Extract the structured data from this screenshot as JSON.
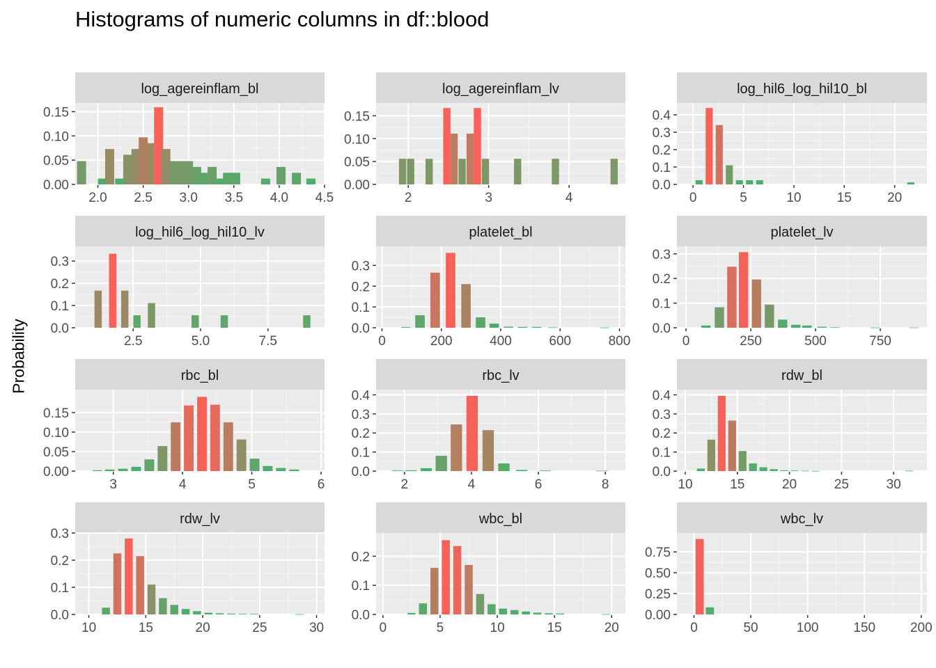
{
  "title": "Histograms of numeric columns in df::blood",
  "ylabel": "Probability",
  "chart_data": {
    "type": "bar",
    "title": "Histograms of numeric columns in df::blood",
    "ylabel": "Probability",
    "color_low": "#41B36E",
    "color_high": "#F8605A",
    "panel_bg": "#EBEBEB",
    "strip_bg": "#D9D9D9",
    "grid": true,
    "facets": [
      {
        "name": "log_agereinflam_bl",
        "xlim": [
          1.75,
          4.5
        ],
        "ylim": [
          0,
          0.165
        ],
        "xticks": [
          {
            "v": 2.0,
            "label": "2.0"
          },
          {
            "v": 2.5,
            "label": "2.5"
          },
          {
            "v": 3.0,
            "label": "3.0"
          },
          {
            "v": 3.5,
            "label": "3.5"
          },
          {
            "v": 4.0,
            "label": "4.0"
          },
          {
            "v": 4.5,
            "label": "4.5"
          }
        ],
        "yticks": [
          {
            "v": 0.0,
            "label": "0.00"
          },
          {
            "v": 0.05,
            "label": "0.05"
          },
          {
            "v": 0.1,
            "label": "0.10"
          },
          {
            "v": 0.15,
            "label": "0.15"
          }
        ],
        "binwidth": 0.1,
        "x": [
          1.82,
          2.05,
          2.13,
          2.24,
          2.33,
          2.42,
          2.5,
          2.58,
          2.67,
          2.75,
          2.84,
          2.92,
          3.0,
          3.09,
          3.17,
          3.26,
          3.35,
          3.43,
          3.52,
          3.85,
          4.02,
          4.19,
          4.35
        ],
        "values": [
          0.048,
          0.012,
          0.073,
          0.012,
          0.061,
          0.073,
          0.097,
          0.085,
          0.159,
          0.073,
          0.048,
          0.048,
          0.048,
          0.036,
          0.024,
          0.036,
          0.012,
          0.024,
          0.024,
          0.012,
          0.036,
          0.024,
          0.012
        ]
      },
      {
        "name": "log_agereinflam_lv",
        "xlim": [
          1.6,
          4.7
        ],
        "ylim": [
          0,
          0.175
        ],
        "xticks": [
          {
            "v": 2,
            "label": "2"
          },
          {
            "v": 3,
            "label": "3"
          },
          {
            "v": 4,
            "label": "4"
          }
        ],
        "yticks": [
          {
            "v": 0.0,
            "label": "0.00"
          },
          {
            "v": 0.05,
            "label": "0.05"
          },
          {
            "v": 0.1,
            "label": "0.10"
          },
          {
            "v": 0.15,
            "label": "0.15"
          }
        ],
        "binwidth": 0.09,
        "x": [
          1.93,
          2.03,
          2.26,
          2.48,
          2.57,
          2.67,
          2.77,
          2.86,
          2.96,
          3.36,
          3.83,
          4.56
        ],
        "values": [
          0.056,
          0.056,
          0.056,
          0.167,
          0.111,
          0.056,
          0.111,
          0.167,
          0.056,
          0.056,
          0.056,
          0.056
        ]
      },
      {
        "name": "log_hil6_log_hil10_bl",
        "xlim": [
          -1.6,
          23.2
        ],
        "ylim": [
          0,
          0.46
        ],
        "xticks": [
          {
            "v": 0,
            "label": "0"
          },
          {
            "v": 5,
            "label": "5"
          },
          {
            "v": 10,
            "label": "10"
          },
          {
            "v": 15,
            "label": "15"
          },
          {
            "v": 20,
            "label": "20"
          }
        ],
        "yticks": [
          {
            "v": 0.0,
            "label": "0.0"
          },
          {
            "v": 0.1,
            "label": "0.1"
          },
          {
            "v": 0.2,
            "label": "0.2"
          },
          {
            "v": 0.3,
            "label": "0.3"
          },
          {
            "v": 0.4,
            "label": "0.4"
          }
        ],
        "binwidth": 0.7,
        "x": [
          0.6,
          1.6,
          2.6,
          3.6,
          4.6,
          5.6,
          6.6,
          21.6
        ],
        "values": [
          0.024,
          0.439,
          0.341,
          0.11,
          0.024,
          0.024,
          0.024,
          0.012
        ]
      },
      {
        "name": "log_hil6_log_hil10_lv",
        "xlim": [
          0.35,
          9.6
        ],
        "ylim": [
          0,
          0.36
        ],
        "xticks": [
          {
            "v": 2.5,
            "label": "2.5"
          },
          {
            "v": 5.0,
            "label": "5.0"
          },
          {
            "v": 7.5,
            "label": "7.5"
          }
        ],
        "yticks": [
          {
            "v": 0.0,
            "label": "0.0"
          },
          {
            "v": 0.1,
            "label": "0.1"
          },
          {
            "v": 0.2,
            "label": "0.2"
          },
          {
            "v": 0.3,
            "label": "0.3"
          }
        ],
        "binwidth": 0.27,
        "x": [
          1.2,
          1.74,
          2.19,
          2.64,
          3.18,
          4.8,
          5.88,
          8.94
        ],
        "values": [
          0.167,
          0.333,
          0.167,
          0.056,
          0.111,
          0.056,
          0.056,
          0.056
        ]
      },
      {
        "name": "platelet_bl",
        "xlim": [
          -20,
          820
        ],
        "ylim": [
          0,
          0.385
        ],
        "xticks": [
          {
            "v": 0,
            "label": "0"
          },
          {
            "v": 200,
            "label": "200"
          },
          {
            "v": 400,
            "label": "400"
          },
          {
            "v": 600,
            "label": "600"
          },
          {
            "v": 800,
            "label": "800"
          }
        ],
        "yticks": [
          {
            "v": 0.0,
            "label": "0.0"
          },
          {
            "v": 0.1,
            "label": "0.1"
          },
          {
            "v": 0.2,
            "label": "0.2"
          },
          {
            "v": 0.3,
            "label": "0.3"
          }
        ],
        "binwidth": 32,
        "x": [
          80,
          128,
          179,
          231,
          283,
          332,
          378,
          426,
          474,
          521,
          575,
          750
        ],
        "values": [
          0.003,
          0.06,
          0.265,
          0.36,
          0.21,
          0.05,
          0.02,
          0.005,
          0.004,
          0.004,
          0.002,
          0.001
        ]
      },
      {
        "name": "platelet_lv",
        "xlim": [
          -35,
          930
        ],
        "ylim": [
          0,
          0.325
        ],
        "xticks": [
          {
            "v": 0,
            "label": "0"
          },
          {
            "v": 250,
            "label": "250"
          },
          {
            "v": 500,
            "label": "500"
          },
          {
            "v": 750,
            "label": "750"
          }
        ],
        "yticks": [
          {
            "v": 0.0,
            "label": "0.0"
          },
          {
            "v": 0.1,
            "label": "0.1"
          },
          {
            "v": 0.2,
            "label": "0.2"
          },
          {
            "v": 0.3,
            "label": "0.3"
          }
        ],
        "binwidth": 36,
        "x": [
          77,
          129,
          177,
          222,
          272,
          322,
          373,
          424,
          467,
          525,
          575,
          730,
          880
        ],
        "values": [
          0.009,
          0.083,
          0.248,
          0.307,
          0.196,
          0.094,
          0.033,
          0.012,
          0.009,
          0.004,
          0.002,
          0.001,
          0.001
        ]
      },
      {
        "name": "rbc_bl",
        "xlim": [
          2.45,
          6.05
        ],
        "ylim": [
          0,
          0.205
        ],
        "xticks": [
          {
            "v": 3,
            "label": "3"
          },
          {
            "v": 4,
            "label": "4"
          },
          {
            "v": 5,
            "label": "5"
          },
          {
            "v": 6,
            "label": "6"
          }
        ],
        "yticks": [
          {
            "v": 0.0,
            "label": "0.00"
          },
          {
            "v": 0.05,
            "label": "0.05"
          },
          {
            "v": 0.1,
            "label": "0.10"
          },
          {
            "v": 0.15,
            "label": "0.15"
          }
        ],
        "binwidth": 0.14,
        "x": [
          2.77,
          2.95,
          3.14,
          3.33,
          3.52,
          3.71,
          3.9,
          4.09,
          4.28,
          4.47,
          4.66,
          4.85,
          5.04,
          5.23,
          5.42,
          5.61
        ],
        "values": [
          0.002,
          0.004,
          0.006,
          0.011,
          0.03,
          0.064,
          0.125,
          0.168,
          0.19,
          0.17,
          0.125,
          0.081,
          0.032,
          0.013,
          0.008,
          0.004
        ]
      },
      {
        "name": "rbc_lv",
        "xlim": [
          1.15,
          8.6
        ],
        "ylim": [
          0,
          0.42
        ],
        "xticks": [
          {
            "v": 2,
            "label": "2"
          },
          {
            "v": 4,
            "label": "4"
          },
          {
            "v": 6,
            "label": "6"
          },
          {
            "v": 8,
            "label": "8"
          }
        ],
        "yticks": [
          {
            "v": 0.0,
            "label": "0.0"
          },
          {
            "v": 0.1,
            "label": "0.1"
          },
          {
            "v": 0.2,
            "label": "0.2"
          },
          {
            "v": 0.3,
            "label": "0.3"
          },
          {
            "v": 0.4,
            "label": "0.4"
          }
        ],
        "binwidth": 0.34,
        "x": [
          1.8,
          2.2,
          2.65,
          3.1,
          3.55,
          4.02,
          4.5,
          4.97,
          5.5,
          6.2,
          7.9
        ],
        "values": [
          0.003,
          0.004,
          0.015,
          0.08,
          0.245,
          0.395,
          0.215,
          0.04,
          0.006,
          0.003,
          0.002
        ]
      },
      {
        "name": "rdw_bl",
        "xlim": [
          9.2,
          33.2
        ],
        "ylim": [
          0,
          0.42
        ],
        "xticks": [
          {
            "v": 10,
            "label": "10"
          },
          {
            "v": 15,
            "label": "15"
          },
          {
            "v": 20,
            "label": "20"
          },
          {
            "v": 25,
            "label": "25"
          },
          {
            "v": 30,
            "label": "30"
          }
        ],
        "yticks": [
          {
            "v": 0.0,
            "label": "0.0"
          },
          {
            "v": 0.1,
            "label": "0.1"
          },
          {
            "v": 0.2,
            "label": "0.2"
          },
          {
            "v": 0.3,
            "label": "0.3"
          },
          {
            "v": 0.4,
            "label": "0.4"
          }
        ],
        "binwidth": 0.75,
        "x": [
          11.5,
          12.5,
          13.5,
          14.5,
          15.5,
          16.5,
          17.5,
          18.5,
          19.5,
          20.5,
          21.5,
          22.5,
          31.5
        ],
        "values": [
          0.013,
          0.165,
          0.395,
          0.265,
          0.105,
          0.04,
          0.02,
          0.01,
          0.004,
          0.003,
          0.002,
          0.001,
          0.002
        ]
      },
      {
        "name": "rdw_lv",
        "xlim": [
          8.8,
          30.7
        ],
        "ylim": [
          0,
          0.295
        ],
        "xticks": [
          {
            "v": 10,
            "label": "10"
          },
          {
            "v": 15,
            "label": "15"
          },
          {
            "v": 20,
            "label": "20"
          },
          {
            "v": 25,
            "label": "25"
          },
          {
            "v": 30,
            "label": "30"
          }
        ],
        "yticks": [
          {
            "v": 0.0,
            "label": "0.0"
          },
          {
            "v": 0.1,
            "label": "0.1"
          },
          {
            "v": 0.2,
            "label": "0.2"
          },
          {
            "v": 0.3,
            "label": "0.3"
          }
        ],
        "binwidth": 0.7,
        "x": [
          11.5,
          12.5,
          13.5,
          14.5,
          15.5,
          16.5,
          17.5,
          18.5,
          19.5,
          20.5,
          21.5,
          22.5,
          23.5,
          24.5,
          28.5
        ],
        "values": [
          0.025,
          0.225,
          0.28,
          0.215,
          0.11,
          0.06,
          0.035,
          0.02,
          0.012,
          0.006,
          0.004,
          0.003,
          0.002,
          0.002,
          0.001
        ]
      },
      {
        "name": "wbc_bl",
        "xlim": [
          -0.6,
          21.2
        ],
        "ylim": [
          0,
          0.275
        ],
        "xticks": [
          {
            "v": 0,
            "label": "0"
          },
          {
            "v": 5,
            "label": "5"
          },
          {
            "v": 10,
            "label": "10"
          },
          {
            "v": 15,
            "label": "15"
          },
          {
            "v": 20,
            "label": "20"
          }
        ],
        "yticks": [
          {
            "v": 0.0,
            "label": "0.0"
          },
          {
            "v": 0.1,
            "label": "0.1"
          },
          {
            "v": 0.2,
            "label": "0.2"
          }
        ],
        "binwidth": 0.7,
        "x": [
          2.5,
          3.5,
          4.5,
          5.5,
          6.5,
          7.5,
          8.5,
          9.5,
          10.5,
          11.5,
          12.5,
          13.5,
          14.5,
          15.5,
          19.5
        ],
        "values": [
          0.005,
          0.038,
          0.16,
          0.255,
          0.235,
          0.17,
          0.07,
          0.035,
          0.02,
          0.015,
          0.01,
          0.006,
          0.004,
          0.003,
          0.001
        ]
      },
      {
        "name": "wbc_lv",
        "xlim": [
          -15,
          205
        ],
        "ylim": [
          0,
          0.96
        ],
        "xticks": [
          {
            "v": 0,
            "label": "0"
          },
          {
            "v": 50,
            "label": "50"
          },
          {
            "v": 100,
            "label": "100"
          },
          {
            "v": 150,
            "label": "150"
          },
          {
            "v": 200,
            "label": "200"
          }
        ],
        "yticks": [
          {
            "v": 0.0,
            "label": "0.00"
          },
          {
            "v": 0.25,
            "label": "0.25"
          },
          {
            "v": 0.5,
            "label": "0.50"
          },
          {
            "v": 0.75,
            "label": "0.75"
          }
        ],
        "binwidth": 7.2,
        "x": [
          5,
          14
        ],
        "values": [
          0.905,
          0.085
        ]
      }
    ]
  }
}
